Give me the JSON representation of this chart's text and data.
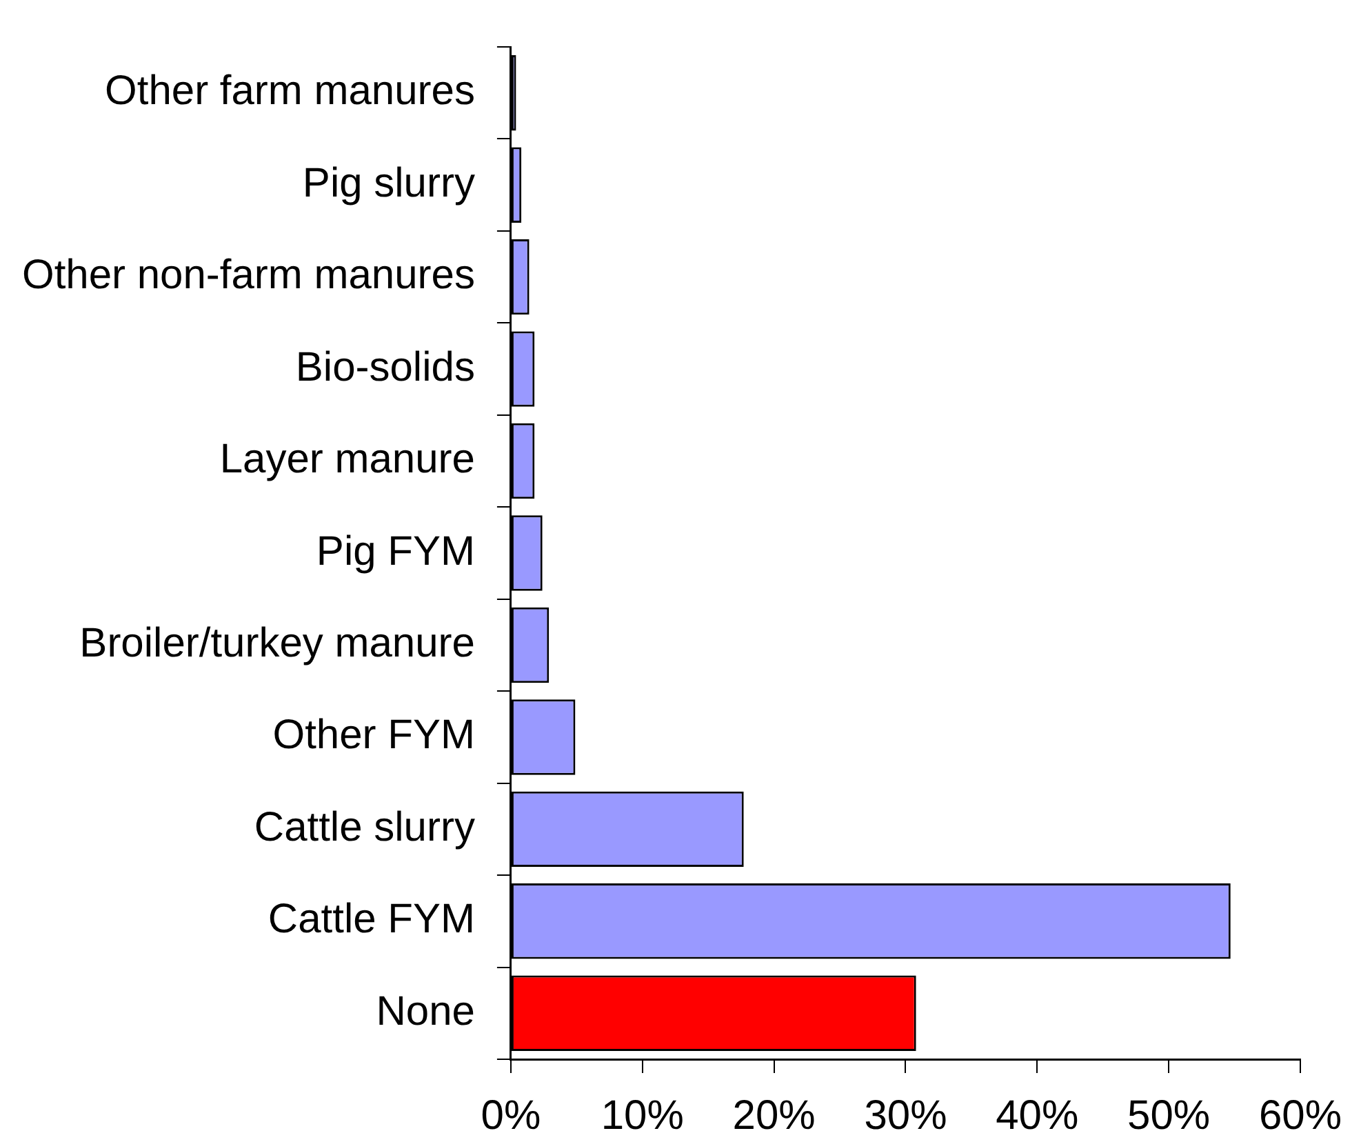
{
  "chart_data": {
    "type": "bar",
    "orientation": "horizontal",
    "categories": [
      "Other farm manures",
      "Pig slurry",
      "Other non-farm manures",
      "Bio-solids",
      "Layer manure",
      "Pig FYM",
      "Broiler/turkey manure",
      "Other FYM",
      "Cattle slurry",
      "Cattle FYM",
      "None"
    ],
    "values": [
      0.4,
      0.8,
      1.4,
      1.8,
      1.8,
      2.4,
      2.9,
      4.9,
      17.7,
      54.7,
      30.8
    ],
    "colors": [
      "#9999ff",
      "#9999ff",
      "#9999ff",
      "#9999ff",
      "#9999ff",
      "#9999ff",
      "#9999ff",
      "#9999ff",
      "#9999ff",
      "#9999ff",
      "#ff0000"
    ],
    "xlim": [
      0,
      60
    ],
    "xticks": [
      {
        "value": 0,
        "label": "0%"
      },
      {
        "value": 10,
        "label": "10%"
      },
      {
        "value": 20,
        "label": "20%"
      },
      {
        "value": 30,
        "label": "30%"
      },
      {
        "value": 40,
        "label": "40%"
      },
      {
        "value": 50,
        "label": "50%"
      },
      {
        "value": 60,
        "label": "60%"
      }
    ]
  }
}
